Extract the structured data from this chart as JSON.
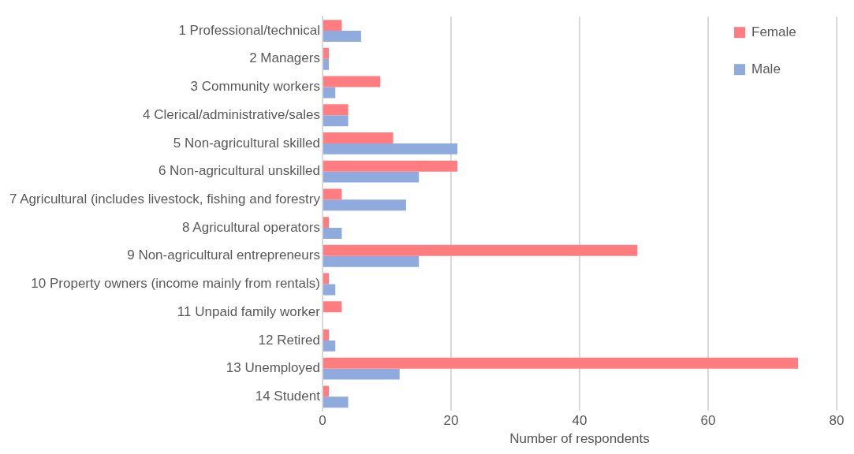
{
  "chart_data": {
    "type": "bar",
    "orientation": "horizontal",
    "xlabel": "Number of respondents",
    "categories": [
      "1 Professional/technical",
      "2 Managers",
      "3 Community workers",
      "4 Clerical/administrative/sales",
      "5 Non-agricultural skilled",
      "6 Non-agricultural unskilled",
      "7 Agricultural (includes livestock, fishing and forestry",
      "8 Agricultural operators",
      "9 Non-agricultural entrepreneurs",
      "10 Property owners (income mainly from rentals)",
      "11 Unpaid family worker",
      "12 Retired",
      "13 Unemployed",
      "14 Student"
    ],
    "series": [
      {
        "name": "Female",
        "color": "#ff7c80",
        "values": [
          3,
          1,
          9,
          4,
          11,
          21,
          3,
          1,
          49,
          1,
          3,
          1,
          74,
          1
        ]
      },
      {
        "name": "Male",
        "color": "#8faadc",
        "values": [
          6,
          1,
          2,
          4,
          21,
          15,
          13,
          3,
          15,
          2,
          0,
          2,
          12,
          4
        ]
      }
    ],
    "xlim": [
      0,
      80
    ],
    "xticks": [
      0,
      20,
      40,
      60,
      80
    ],
    "grid": "x",
    "legend": "top right"
  }
}
